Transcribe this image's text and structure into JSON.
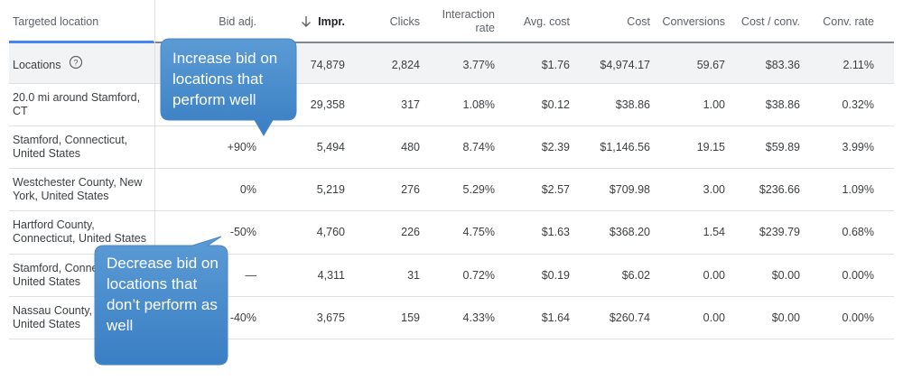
{
  "table": {
    "columns": [
      "Targeted location",
      "Bid adj.",
      "Impr.",
      "Clicks",
      "Interaction rate",
      "Avg. cost",
      "Cost",
      "Conversions",
      "Cost / conv.",
      "Conv. rate"
    ],
    "rows": [
      [
        "Locations",
        null,
        "74,879",
        "2,824",
        "3.77%",
        "$1.76",
        "$4,974.17",
        "59.67",
        "$83.36",
        "2.11%"
      ],
      [
        "20.0 mi around Stamford, CT",
        null,
        "29,358",
        "317",
        "1.08%",
        "$0.12",
        "$38.86",
        "1.00",
        "$38.86",
        "0.32%"
      ],
      [
        "Stamford, Connecticut, United States",
        "+90%",
        "5,494",
        "480",
        "8.74%",
        "$2.39",
        "$1,146.56",
        "19.15",
        "$59.89",
        "3.99%"
      ],
      [
        "Westchester County, New York, United States",
        "0%",
        "5,219",
        "276",
        "5.29%",
        "$2.57",
        "$709.98",
        "3.00",
        "$236.66",
        "1.09%"
      ],
      [
        "Hartford County, Connecticut, United States",
        "-50%",
        "4,760",
        "226",
        "4.75%",
        "$1.63",
        "$368.20",
        "1.54",
        "$239.79",
        "0.68%"
      ],
      [
        "Stamford, Connecticut, United States",
        "—",
        "4,311",
        "31",
        "0.72%",
        "$0.19",
        "$6.02",
        "0.00",
        "$0.00",
        "0.00%"
      ],
      [
        "Nassau County, New York, United States",
        "-40%",
        "3,675",
        "159",
        "4.33%",
        "$1.64",
        "$260.74",
        "0.00",
        "$0.00",
        "0.00%"
      ]
    ]
  },
  "callouts": [
    {
      "text": "Increase bid on locations that perform well"
    },
    {
      "text": "Decrease bid on locations that don’t perform as well"
    }
  ]
}
